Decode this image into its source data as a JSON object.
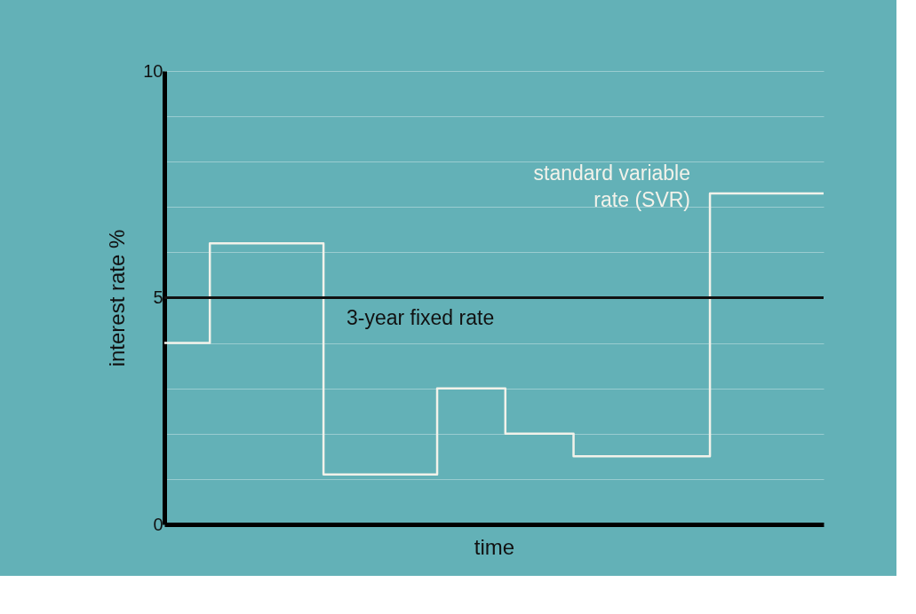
{
  "chart_data": {
    "type": "step",
    "xlabel": "time",
    "ylabel": "interest rate %",
    "categories": [
      null,
      null,
      null,
      null,
      null,
      null,
      null,
      null,
      null,
      null,
      null,
      null,
      null,
      null,
      null,
      null,
      null,
      null,
      null,
      null,
      null,
      null,
      null,
      null,
      null,
      null,
      null,
      null,
      null,
      null
    ],
    "series": [
      {
        "name": "standard variable rate (SVR)",
        "color": "#f2f2ea",
        "values": [
          4.0,
          4.0,
          6.2,
          6.2,
          6.2,
          6.2,
          6.2,
          1.1,
          1.1,
          1.1,
          1.1,
          1.1,
          3.0,
          3.0,
          3.0,
          2.0,
          2.0,
          2.0,
          1.5,
          1.5,
          1.5,
          1.5,
          1.5,
          1.5,
          7.3,
          7.3,
          7.3,
          7.3,
          7.3,
          7.3
        ]
      }
    ],
    "ylim": [
      0,
      10
    ],
    "yticks": [
      0,
      {
        "value": 1,
        "label": null
      },
      {
        "value": 2,
        "label": null
      },
      {
        "value": 3,
        "label": null
      },
      {
        "value": 4,
        "label": null
      },
      5,
      {
        "value": 6,
        "label": null
      },
      {
        "value": 7,
        "label": null
      },
      {
        "value": 8,
        "label": null
      },
      {
        "value": 9,
        "label": null
      },
      10
    ],
    "ref_lines": [
      {
        "axis": "y",
        "value": 5,
        "label": "3-year fixed rate",
        "color": "#111111"
      }
    ],
    "grid": "y",
    "marker": "none",
    "line_style": "solid",
    "tick_labels": "y"
  }
}
